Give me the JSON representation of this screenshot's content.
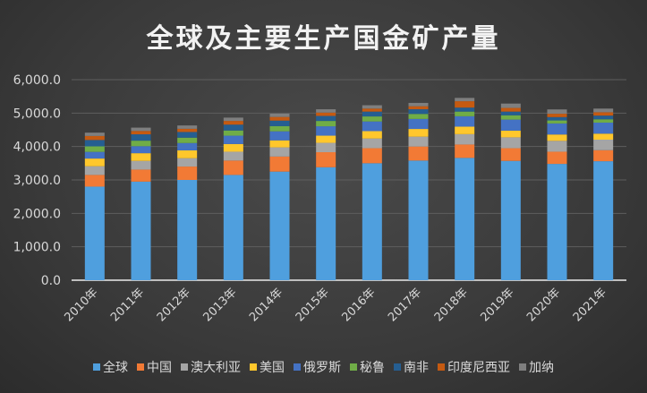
{
  "chart_data": {
    "type": "bar",
    "stacked": true,
    "title": "全球及主要生产国金矿产量",
    "categories": [
      "2010年",
      "2011年",
      "2012年",
      "2013年",
      "2014年",
      "2015年",
      "2016年",
      "2017年",
      "2018年",
      "2019年",
      "2020年",
      "2021年"
    ],
    "ylim": [
      0,
      6000
    ],
    "yticks": [
      "0.0",
      "1,000.0",
      "2,000.0",
      "3,000.0",
      "4,000.0",
      "5,000.0",
      "6,000.0"
    ],
    "grid": true,
    "legend": "bottom",
    "series": [
      {
        "name": "全球",
        "color": "#4f9fde",
        "values": [
          2800,
          2950,
          3000,
          3150,
          3250,
          3380,
          3500,
          3580,
          3660,
          3570,
          3480,
          3560
        ]
      },
      {
        "name": "中国",
        "color": "#f27a35",
        "values": [
          350,
          360,
          400,
          430,
          450,
          450,
          450,
          420,
          400,
          380,
          365,
          330
        ]
      },
      {
        "name": "澳大利亚",
        "color": "#a5a5a5",
        "values": [
          260,
          260,
          250,
          265,
          275,
          280,
          290,
          295,
          310,
          325,
          325,
          315
        ]
      },
      {
        "name": "美国",
        "color": "#ffc72c",
        "values": [
          230,
          230,
          235,
          230,
          210,
          215,
          220,
          230,
          225,
          200,
          190,
          180
        ]
      },
      {
        "name": "俄罗斯",
        "color": "#4472c4",
        "values": [
          200,
          210,
          220,
          250,
          270,
          280,
          290,
          300,
          310,
          330,
          330,
          330
        ]
      },
      {
        "name": "秘鲁",
        "color": "#70ad47",
        "values": [
          165,
          165,
          160,
          155,
          155,
          160,
          150,
          150,
          140,
          130,
          90,
          100
        ]
      },
      {
        "name": "南非",
        "color": "#255e91",
        "values": [
          190,
          190,
          170,
          175,
          165,
          150,
          145,
          140,
          120,
          110,
          100,
          110
        ]
      },
      {
        "name": "印度尼西亚",
        "color": "#c55a11",
        "values": [
          120,
          100,
          95,
          110,
          110,
          100,
          90,
          90,
          190,
          110,
          100,
          100
        ]
      },
      {
        "name": "加纳",
        "color": "#7f7f7f",
        "values": [
          100,
          100,
          100,
          100,
          100,
          100,
          100,
          100,
          100,
          130,
          130,
          110
        ]
      }
    ]
  }
}
